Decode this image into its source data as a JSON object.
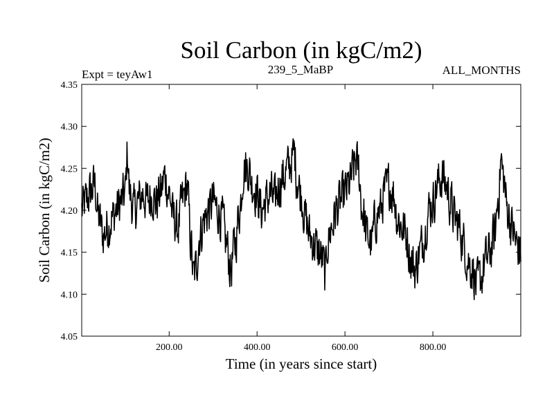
{
  "chart_data": {
    "type": "line",
    "title": "Soil Carbon (in kgC/m2)",
    "subtitle_left": "Expt = teyAw1",
    "subtitle_center": "239_5_MaBP",
    "subtitle_right": "ALL_MONTHS",
    "xlabel": "Time (in years since start)",
    "ylabel": "Soil Carbon (in kgC/m2)",
    "xlim": [
      1,
      1000
    ],
    "ylim": [
      4.05,
      4.35
    ],
    "x_ticks": [
      200,
      400,
      600,
      800
    ],
    "x_tick_labels": [
      "200.00",
      "400.00",
      "600.00",
      "800.00"
    ],
    "y_ticks": [
      4.05,
      4.1,
      4.15,
      4.2,
      4.25,
      4.3,
      4.35
    ],
    "y_tick_labels": [
      "4.05",
      "4.10",
      "4.15",
      "4.20",
      "4.25",
      "4.30",
      "4.35"
    ],
    "series": [
      {
        "name": "Soil Carbon",
        "color": "#000000",
        "x_start": 1,
        "x_step": 1,
        "anchors_x": [
          1,
          10,
          20,
          30,
          40,
          50,
          60,
          70,
          80,
          90,
          100,
          105,
          110,
          120,
          130,
          140,
          150,
          160,
          170,
          180,
          190,
          200,
          210,
          220,
          230,
          240,
          250,
          255,
          260,
          270,
          280,
          290,
          300,
          310,
          320,
          330,
          340,
          350,
          360,
          370,
          380,
          390,
          400,
          410,
          420,
          430,
          440,
          450,
          460,
          470,
          480,
          485,
          490,
          500,
          510,
          520,
          530,
          540,
          550,
          555,
          560,
          570,
          580,
          590,
          600,
          610,
          620,
          625,
          630,
          640,
          650,
          660,
          670,
          680,
          690,
          700,
          710,
          720,
          730,
          740,
          750,
          760,
          770,
          780,
          790,
          800,
          810,
          820,
          830,
          840,
          850,
          860,
          870,
          880,
          890,
          900,
          910,
          920,
          930,
          940,
          950,
          955,
          960,
          970,
          980,
          990,
          1000
        ],
        "anchors_y": [
          4.2,
          4.21,
          4.22,
          4.23,
          4.19,
          4.17,
          4.18,
          4.19,
          4.2,
          4.21,
          4.22,
          4.27,
          4.22,
          4.2,
          4.21,
          4.22,
          4.21,
          4.22,
          4.21,
          4.22,
          4.24,
          4.22,
          4.19,
          4.18,
          4.21,
          4.23,
          4.16,
          4.12,
          4.13,
          4.17,
          4.19,
          4.2,
          4.21,
          4.2,
          4.19,
          4.16,
          4.13,
          4.16,
          4.2,
          4.25,
          4.25,
          4.23,
          4.22,
          4.2,
          4.21,
          4.22,
          4.21,
          4.23,
          4.24,
          4.25,
          4.26,
          4.27,
          4.24,
          4.22,
          4.19,
          4.17,
          4.16,
          4.15,
          4.14,
          4.12,
          4.16,
          4.18,
          4.2,
          4.21,
          4.22,
          4.23,
          4.25,
          4.26,
          4.25,
          4.2,
          4.17,
          4.16,
          4.19,
          4.2,
          4.22,
          4.23,
          4.22,
          4.19,
          4.18,
          4.17,
          4.14,
          4.13,
          4.15,
          4.17,
          4.2,
          4.21,
          4.23,
          4.24,
          4.23,
          4.21,
          4.19,
          4.18,
          4.16,
          4.14,
          4.13,
          4.11,
          4.12,
          4.14,
          4.15,
          4.17,
          4.22,
          4.26,
          4.24,
          4.2,
          4.18,
          4.16,
          4.15
        ],
        "noise_amplitude": 0.025
      }
    ]
  }
}
